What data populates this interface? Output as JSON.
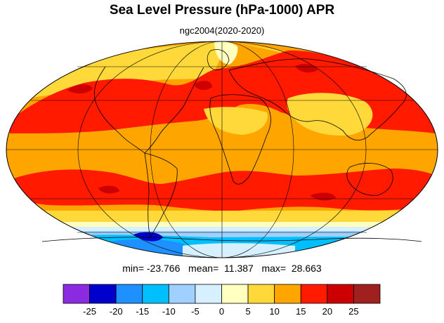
{
  "title": "Sea Level Pressure (hPa-1000) APR",
  "subtitle": "ngc2004(2020-2020)",
  "stats": {
    "min_label": "min=",
    "min_value": "-23.766",
    "mean_label": "mean=",
    "mean_value": "11.387",
    "max_label": "max=",
    "max_value": "28.663"
  },
  "colorbar": {
    "labels": [
      "-25",
      "-20",
      "-15",
      "-10",
      "-5",
      "0",
      "5",
      "10",
      "15",
      "20",
      "25"
    ],
    "colors": [
      "#8a2be2",
      "#0000cd",
      "#1e90ff",
      "#00bfff",
      "#a0d0ff",
      "#d6f0ff",
      "#ffffc0",
      "#ffd93a",
      "#ffa500",
      "#ff1a00",
      "#cc0000",
      "#a02020"
    ]
  },
  "map": {
    "projection": "Mollweide",
    "colors": {
      "background": "#ffa500",
      "strong_high": "#ff1a00",
      "peak_high": "#cc0000",
      "moderate": "#ffd93a",
      "weak": "#ffffc0",
      "near_zero": "#d6f0ff",
      "low1": "#a0d0ff",
      "low2": "#00bfff",
      "low3": "#1e90ff",
      "low4": "#0000cd",
      "coast": "#000000"
    }
  }
}
